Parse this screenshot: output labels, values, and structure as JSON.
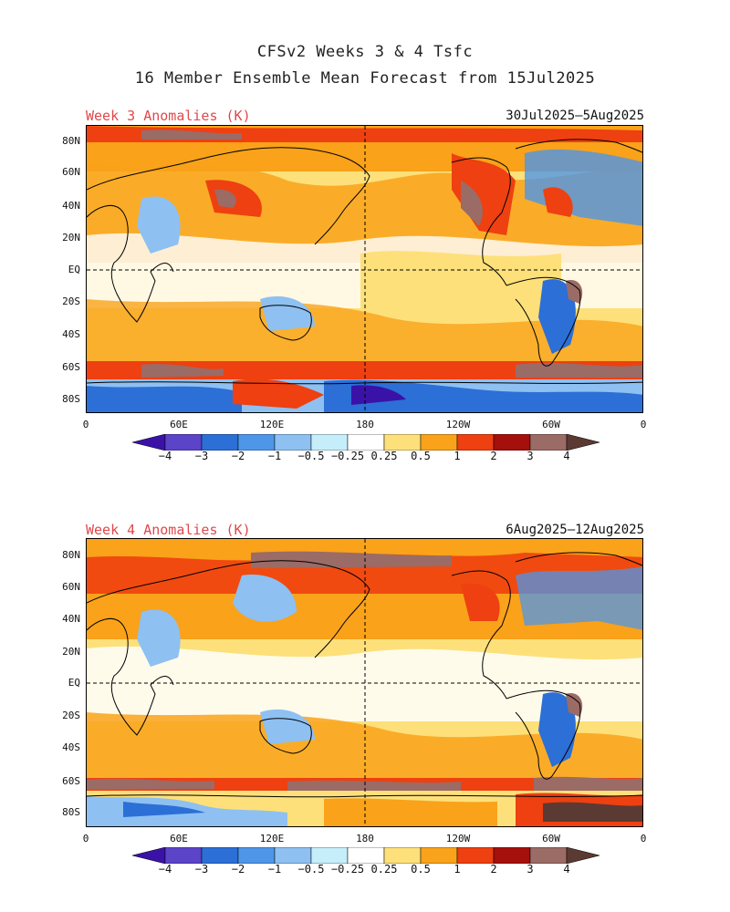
{
  "title_line1": "CFSv2 Weeks 3 & 4 Tsfc",
  "title_line2": "16 Member Ensemble Mean Forecast from 15Jul2025",
  "maps": [
    {
      "subtitle": "Week 3 Anomalies (K)",
      "date_range": "30Jul2025–5Aug2025"
    },
    {
      "subtitle": "Week 4 Anomalies (K)",
      "date_range": "6Aug2025–12Aug2025"
    }
  ],
  "lat_labels": [
    "80N",
    "60N",
    "40N",
    "20N",
    "EQ",
    "20S",
    "40S",
    "60S",
    "80S"
  ],
  "lon_labels": [
    "0",
    "60E",
    "120E",
    "180",
    "120W",
    "60W",
    "0"
  ],
  "colorbar": {
    "labels": [
      "−4",
      "−3",
      "−2",
      "−1",
      "−0.5",
      "−0.25",
      "0.25",
      "0.5",
      "1",
      "2",
      "3",
      "4"
    ],
    "colors": [
      "#3a12a8",
      "#5b44c8",
      "#2c6fd6",
      "#4e96e8",
      "#8ec0f2",
      "#c5eefa",
      "#ffffff",
      "#fde07a",
      "#f9a21a",
      "#ee4010",
      "#a50f0c",
      "#9b6b66",
      "#5a3a33"
    ]
  }
}
